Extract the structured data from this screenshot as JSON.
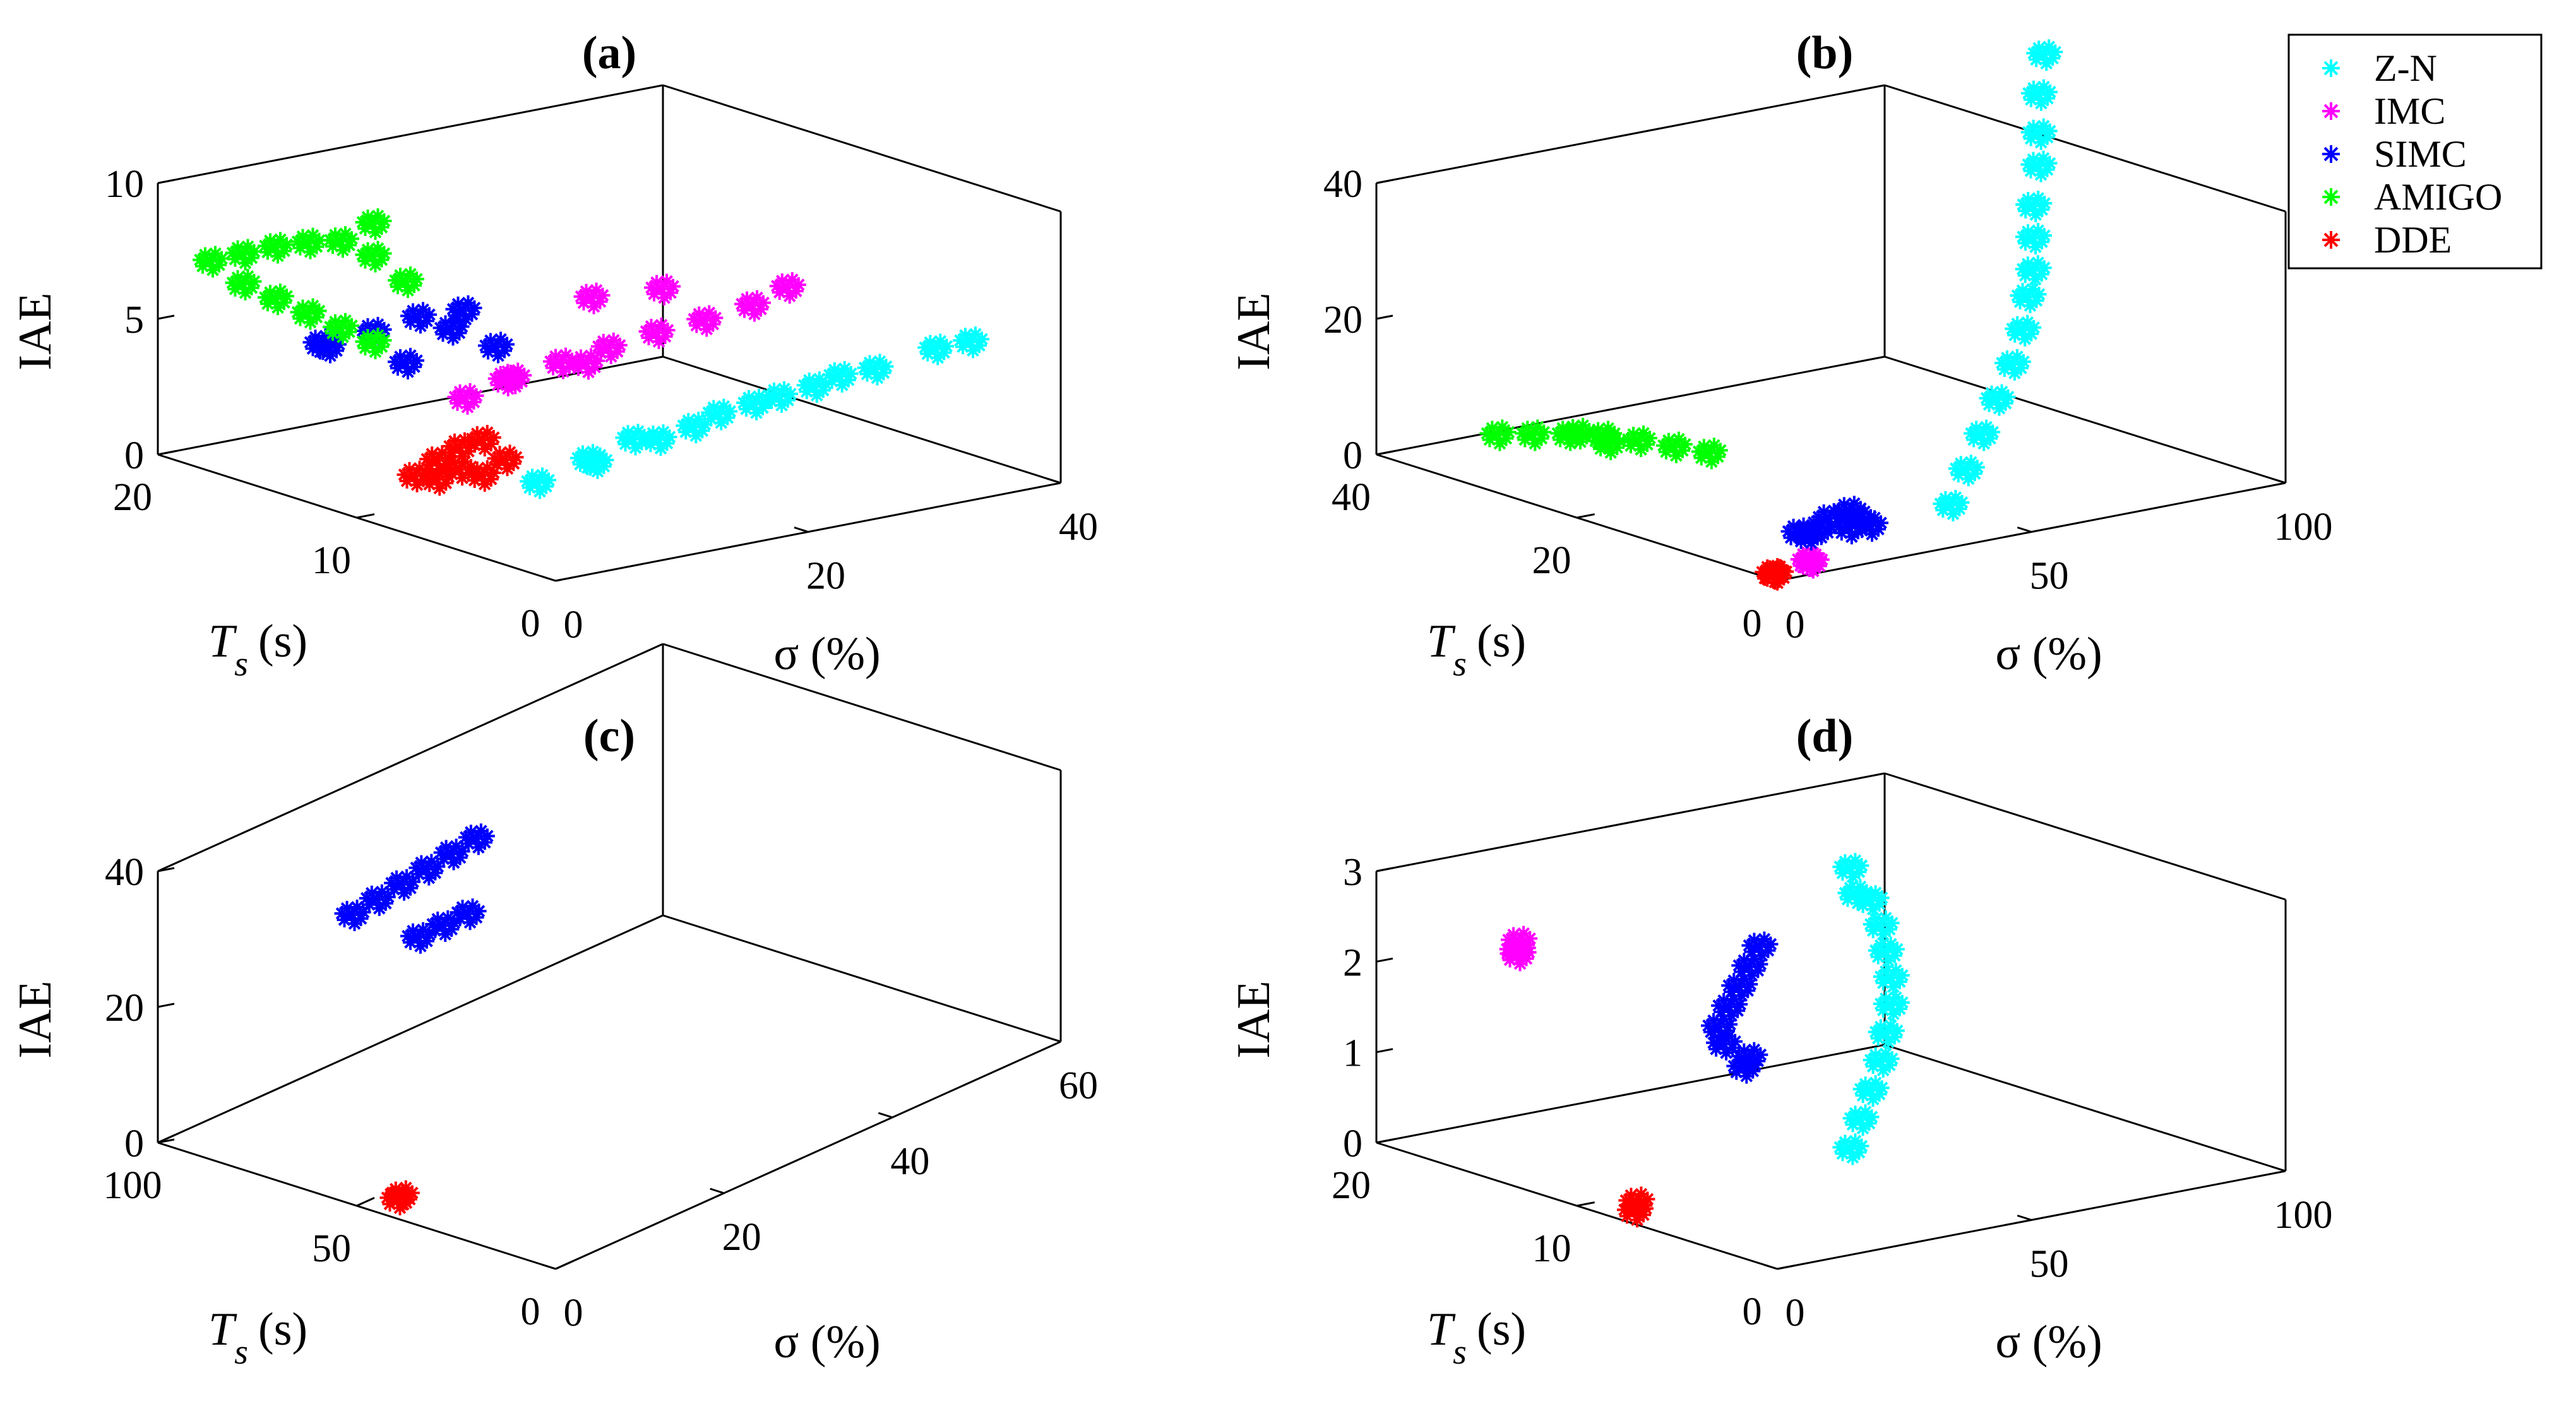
{
  "colors": {
    "Z-N": "#00ffff",
    "IMC": "#ff00ff",
    "SIMC": "#0000ff",
    "AMIGO": "#00ff00",
    "DDE": "#ff0000"
  },
  "legend": {
    "entries": [
      "Z-N",
      "IMC",
      "SIMC",
      "AMIGO",
      "DDE"
    ],
    "placement": "top-right of panel (b)"
  },
  "chart_data": [
    {
      "type": "scatter3d",
      "title": "(a)",
      "xlabel": "σ (%)",
      "ylabel_main": "T",
      "ylabel_sub": "s",
      "ylabel_unit": "(s)",
      "zlabel": "IAE",
      "xlim": [
        0,
        40
      ],
      "ylim": [
        0,
        20
      ],
      "zlim": [
        0,
        10
      ],
      "xticks": [
        "0",
        "20",
        "40"
      ],
      "yticks": [
        "0",
        "10",
        "20"
      ],
      "zticks": [
        "0",
        "5",
        "10"
      ],
      "series": [
        {
          "name": "Z-N",
          "points": [
            [
              8,
              6,
              1.5
            ],
            [
              11,
              5,
              2.2
            ],
            [
              14,
              5,
              2.8
            ],
            [
              18,
              4.5,
              3.0
            ],
            [
              22,
              4,
              3.6
            ],
            [
              26,
              3.5,
              4.0
            ],
            [
              30,
              3,
              4.4
            ],
            [
              34,
              2.5,
              4.9
            ],
            [
              36,
              2,
              5.1
            ],
            [
              12,
              6,
              2.0
            ],
            [
              16,
              5,
              2.6
            ],
            [
              20,
              4.5,
              3.3
            ],
            [
              24,
              4,
              3.7
            ],
            [
              28,
              3.5,
              4.2
            ]
          ]
        },
        {
          "name": "IMC",
          "points": [
            [
              7,
              9,
              4.0
            ],
            [
              10,
              8.5,
              4.6
            ],
            [
              13,
              8,
              5.0
            ],
            [
              16,
              7.5,
              5.4
            ],
            [
              19,
              7,
              5.8
            ],
            [
              22,
              6.5,
              6.1
            ],
            [
              25,
              6,
              6.5
            ],
            [
              27,
              5.5,
              7.1
            ],
            [
              17,
              9,
              6.8
            ],
            [
              21,
              8,
              7.0
            ],
            [
              11,
              9.5,
              4.2
            ],
            [
              15,
              8,
              4.8
            ]
          ]
        },
        {
          "name": "SIMC",
          "points": [
            [
              4,
              14,
              5.0
            ],
            [
              6,
              13,
              5.6
            ],
            [
              8,
              12,
              6.2
            ],
            [
              10,
              11,
              6.5
            ],
            [
              7,
              12,
              4.6
            ],
            [
              11,
              10,
              5.3
            ],
            [
              5,
              15,
              4.8
            ],
            [
              9,
              11,
              5.9
            ]
          ]
        },
        {
          "name": "AMIGO",
          "points": [
            [
              1,
              18,
              7.5
            ],
            [
              2,
              17,
              7.9
            ],
            [
              3,
              16,
              8.3
            ],
            [
              4,
              15,
              8.6
            ],
            [
              5,
              14,
              8.8
            ],
            [
              6,
              13,
              8.4
            ],
            [
              3,
              16,
              6.4
            ],
            [
              4,
              15,
              6.0
            ],
            [
              5,
              14,
              5.6
            ],
            [
              6,
              13,
              5.2
            ],
            [
              2,
              17,
              6.8
            ],
            [
              7,
              12,
              7.6
            ],
            [
              6,
              13,
              9.6
            ]
          ]
        },
        {
          "name": "DDE",
          "points": [
            [
              3,
              9,
              1.5
            ],
            [
              4,
              8.5,
              2.1
            ],
            [
              5,
              8,
              2.6
            ],
            [
              6,
              7.5,
              2.9
            ],
            [
              4,
              8.5,
              1.4
            ],
            [
              5,
              8,
              1.8
            ],
            [
              6,
              7.5,
              1.6
            ],
            [
              7,
              7,
              2.2
            ]
          ]
        }
      ]
    },
    {
      "type": "scatter3d",
      "title": "(b)",
      "xlabel": "σ (%)",
      "ylabel_main": "T",
      "ylabel_sub": "s",
      "ylabel_unit": "(s)",
      "zlabel": "IAE",
      "xlim": [
        0,
        100
      ],
      "ylim": [
        0,
        40
      ],
      "zlim": [
        0,
        40
      ],
      "xticks": [
        "0",
        "50",
        "100"
      ],
      "yticks": [
        "0",
        "20",
        "40"
      ],
      "zticks": [
        "0",
        "20",
        "40"
      ],
      "series": [
        {
          "name": "Z-N",
          "points": [
            [
              40,
              3,
              4
            ],
            [
              45,
              4,
              8
            ],
            [
              50,
              5,
              12
            ],
            [
              55,
              6,
              16
            ],
            [
              60,
              7,
              20
            ],
            [
              64,
              8,
              24
            ],
            [
              67,
              9,
              28
            ],
            [
              70,
              10,
              31
            ],
            [
              72,
              11,
              35
            ],
            [
              74,
              12,
              39
            ],
            [
              77,
              13,
              44
            ],
            [
              79,
              14,
              48
            ],
            [
              81,
              15,
              53
            ],
            [
              84,
              16,
              58
            ]
          ]
        },
        {
          "name": "IMC",
          "points": [
            [
              10,
              2,
              0.6
            ],
            [
              10.5,
              2,
              0.3
            ]
          ]
        },
        {
          "name": "SIMC",
          "points": [
            [
              16,
              6,
              2
            ],
            [
              20,
              6,
              2
            ],
            [
              24,
              5,
              2
            ],
            [
              28,
              5,
              1.8
            ],
            [
              20,
              5,
              4
            ],
            [
              24,
              5,
              4.5
            ],
            [
              18,
              6,
              1.5
            ],
            [
              26,
              5,
              3
            ]
          ]
        },
        {
          "name": "AMIGO",
          "points": [
            [
              8,
              32,
              5.5
            ],
            [
              11,
              30,
              6.0
            ],
            [
              14,
              28,
              6.5
            ],
            [
              17,
              26,
              6.8
            ],
            [
              20,
              24,
              6.6
            ],
            [
              23,
              22,
              6.2
            ],
            [
              26,
              20,
              5.8
            ],
            [
              14,
              27,
              7.2
            ],
            [
              18,
              26,
              5.5
            ]
          ]
        },
        {
          "name": "DDE",
          "points": [
            [
              1,
              1,
              0.5
            ],
            [
              1.5,
              1,
              0.3
            ]
          ]
        }
      ]
    },
    {
      "type": "scatter3d",
      "title": "(c)",
      "xlabel": "σ (%)",
      "ylabel_main": "T",
      "ylabel_sub": "s",
      "ylabel_unit": "(s)",
      "zlabel": "IAE",
      "xlim": [
        0,
        60
      ],
      "ylim": [
        0,
        100
      ],
      "zlim": [
        0,
        40
      ],
      "xticks": [
        "0",
        "20",
        "40",
        "60"
      ],
      "yticks": [
        "0",
        "50",
        "100"
      ],
      "zticks": [
        "0",
        "20",
        "40"
      ],
      "series": [
        {
          "name": "SIMC",
          "points": [
            [
              7,
              66,
              36
            ],
            [
              9,
              64,
              37.5
            ],
            [
              11,
              62,
              39
            ],
            [
              13,
              60,
              40.5
            ],
            [
              15,
              58,
              42
            ],
            [
              17,
              56,
              43.5
            ],
            [
              12,
              60,
              31
            ],
            [
              14,
              58,
              32
            ],
            [
              16,
              56,
              33
            ]
          ]
        },
        {
          "name": "DDE",
          "points": [
            [
              2,
              44,
              1
            ],
            [
              2.4,
              44,
              1.3
            ]
          ]
        }
      ]
    },
    {
      "type": "scatter3d",
      "title": "(d)",
      "xlabel": "σ (%)",
      "ylabel_main": "T",
      "ylabel_sub": "s",
      "ylabel_unit": "(s)",
      "zlabel": "IAE",
      "xlim": [
        0,
        100
      ],
      "ylim": [
        0,
        20
      ],
      "zlim": [
        0,
        3
      ],
      "xticks": [
        "0",
        "50",
        "100"
      ],
      "yticks": [
        "0",
        "10",
        "20"
      ],
      "zticks": [
        "0",
        "1",
        "2",
        "3"
      ],
      "series": [
        {
          "name": "Z-N",
          "points": [
            [
              38,
              6,
              0.5
            ],
            [
              40,
              6,
              0.8
            ],
            [
              42,
              6,
              1.1
            ],
            [
              44,
              6,
              1.4
            ],
            [
              45,
              6,
              1.7
            ],
            [
              46,
              6,
              2.0
            ],
            [
              46,
              6,
              2.3
            ],
            [
              45,
              6,
              2.6
            ],
            [
              44,
              6,
              2.9
            ],
            [
              42,
              6,
              3.2
            ],
            [
              39,
              6,
              3.3
            ],
            [
              38,
              6,
              3.6
            ]
          ]
        },
        {
          "name": "IMC",
          "points": [
            [
              4,
              14,
              2.5
            ],
            [
              4.3,
              14,
              2.6
            ],
            [
              4.1,
              14,
              2.45
            ]
          ]
        },
        {
          "name": "SIMC",
          "points": [
            [
              20,
              8,
              1.9
            ],
            [
              22,
              8,
              2.1
            ],
            [
              24,
              8,
              2.3
            ],
            [
              26,
              8,
              2.5
            ],
            [
              28,
              8,
              2.7
            ],
            [
              25,
              8,
              1.4
            ],
            [
              26,
              8,
              1.5
            ],
            [
              21,
              8,
              1.7
            ]
          ]
        },
        {
          "name": "DDE",
          "points": [
            [
              1.5,
              7.5,
              0.1
            ],
            [
              1.8,
              7.5,
              0.2
            ]
          ]
        }
      ]
    }
  ]
}
